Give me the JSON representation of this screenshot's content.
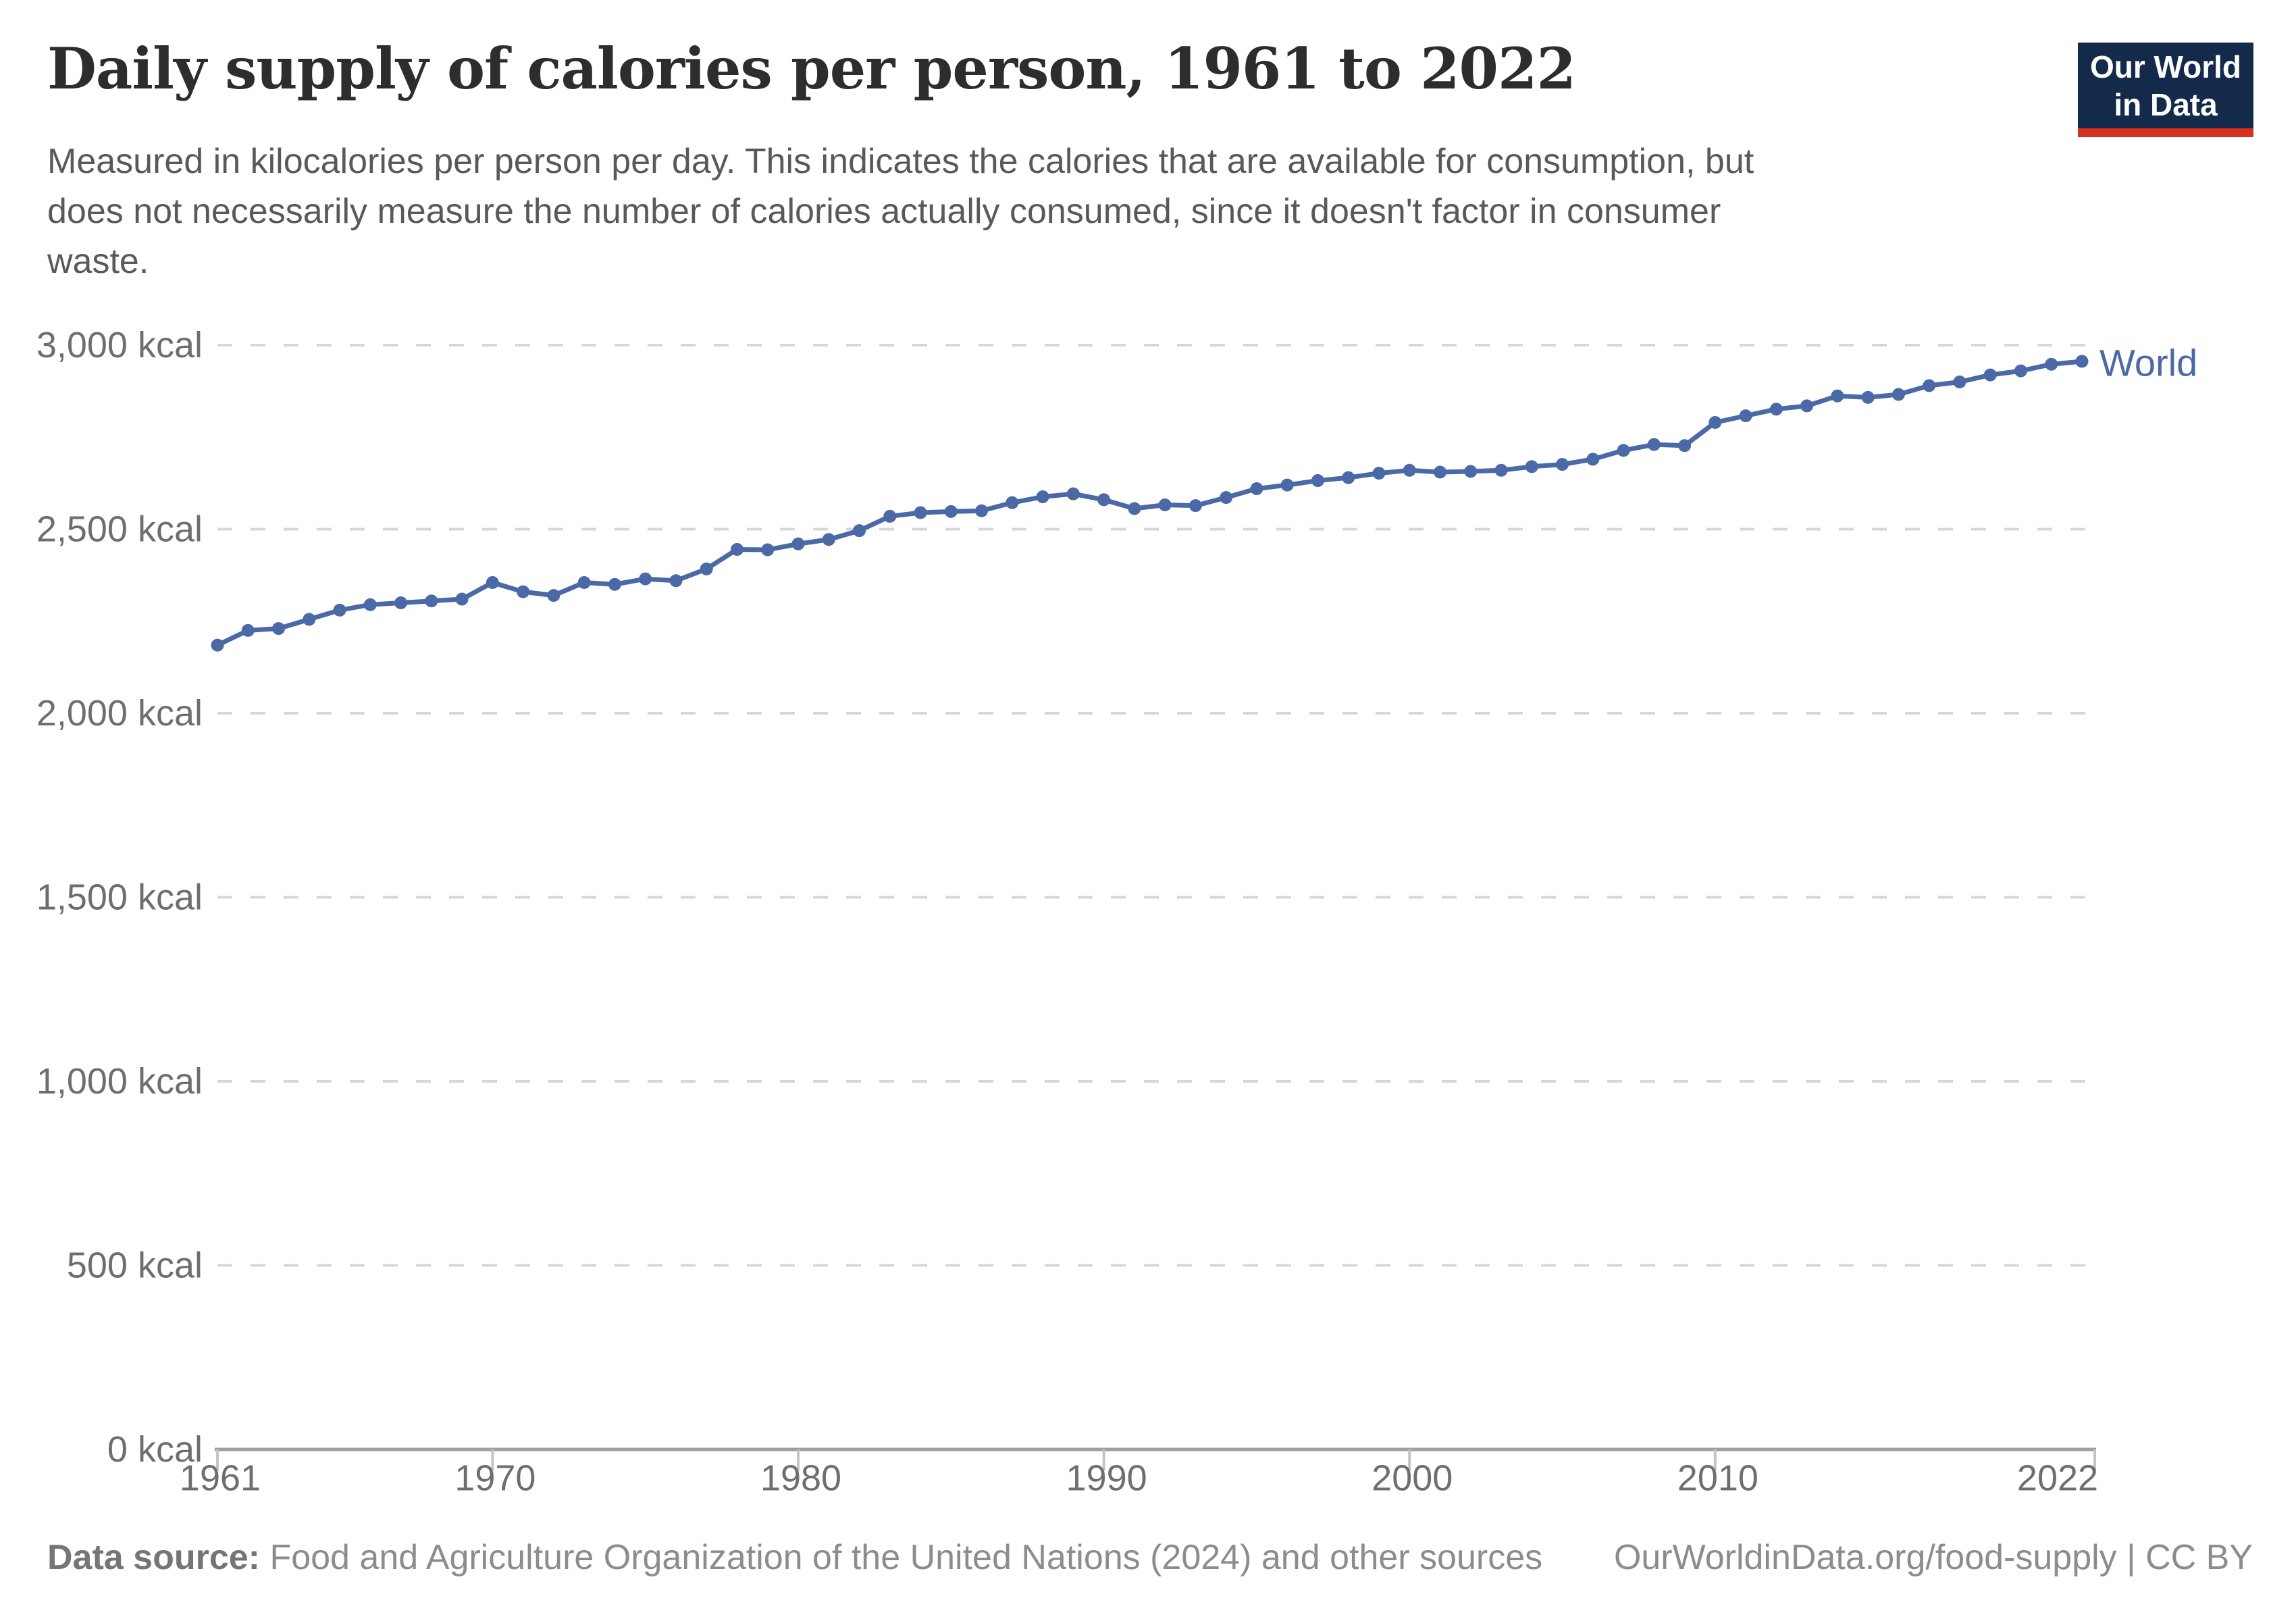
{
  "header": {
    "title": "Daily supply of calories per person, 1961 to 2022",
    "subtitle_lines": [
      "Measured in kilocalories per person per day. This indicates the calories that are available for consumption, but",
      "does not necessarily measure the number of calories actually consumed, since it doesn't factor in consumer",
      "waste."
    ],
    "logo": {
      "line1": "Our World",
      "line2": "in Data",
      "bg_color": "#132a4a",
      "bar_color": "#d8301f"
    }
  },
  "chart_data": {
    "type": "line",
    "title": "Daily supply of calories per person, 1961 to 2022",
    "xlabel": "",
    "ylabel": "",
    "unit": "kcal",
    "xlim": [
      1961,
      2022
    ],
    "ylim": [
      0,
      3000
    ],
    "x_ticks": [
      1961,
      1970,
      1980,
      1990,
      2000,
      2010,
      2022
    ],
    "y_ticks": [
      0,
      500,
      1000,
      1500,
      2000,
      2500,
      3000
    ],
    "y_tick_labels": [
      "0 kcal",
      "500 kcal",
      "1,000 kcal",
      "1,500 kcal",
      "2,000 kcal",
      "2,500 kcal",
      "3,000 kcal"
    ],
    "grid": "horizontal-dashed",
    "grid_color": "#d7d7d7",
    "axis_color": "#9f9f9f",
    "tick_color": "#c4c4c4",
    "tick_label_color": "#6e6e6e",
    "legend": "end-of-line-label",
    "series": [
      {
        "name": "World",
        "color": "#4a69a6",
        "years": [
          1961,
          1962,
          1963,
          1964,
          1965,
          1966,
          1967,
          1968,
          1969,
          1970,
          1971,
          1972,
          1973,
          1974,
          1975,
          1976,
          1977,
          1978,
          1979,
          1980,
          1981,
          1982,
          1983,
          1984,
          1985,
          1986,
          1987,
          1988,
          1989,
          1990,
          1991,
          1992,
          1993,
          1994,
          1995,
          1996,
          1997,
          1998,
          1999,
          2000,
          2001,
          2002,
          2003,
          2004,
          2005,
          2006,
          2007,
          2008,
          2009,
          2010,
          2011,
          2012,
          2013,
          2014,
          2015,
          2016,
          2017,
          2018,
          2019,
          2020,
          2021,
          2022
        ],
        "values": [
          2185,
          2225,
          2230,
          2255,
          2280,
          2295,
          2300,
          2305,
          2310,
          2355,
          2330,
          2320,
          2355,
          2350,
          2365,
          2360,
          2392,
          2445,
          2444,
          2460,
          2472,
          2496,
          2535,
          2545,
          2548,
          2550,
          2572,
          2588,
          2596,
          2580,
          2556,
          2566,
          2564,
          2586,
          2610,
          2620,
          2632,
          2640,
          2652,
          2660,
          2655,
          2657,
          2660,
          2670,
          2676,
          2690,
          2714,
          2730,
          2727,
          2790,
          2808,
          2826,
          2835,
          2862,
          2858,
          2866,
          2890,
          2900,
          2919,
          2930,
          2948,
          2956
        ]
      }
    ]
  },
  "footer": {
    "source_label": "Data source:",
    "source_text": " Food and Agriculture Organization of the United Nations (2024) and other sources",
    "link_text": "OurWorldinData.org/food-supply | CC BY"
  }
}
